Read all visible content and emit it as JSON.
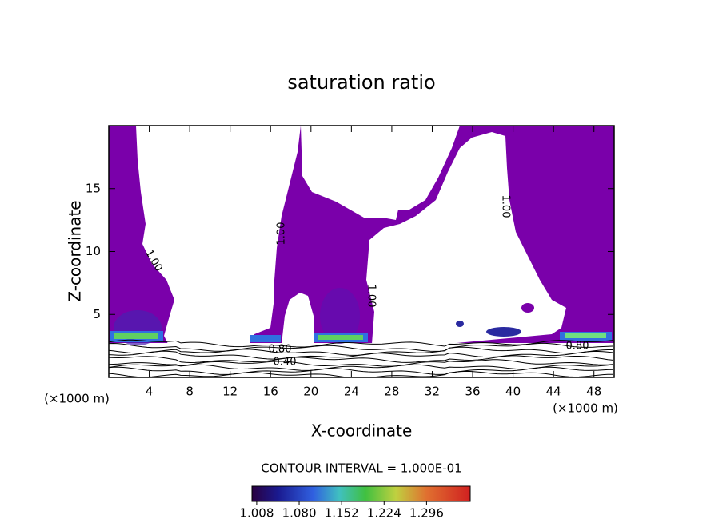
{
  "chart_data": {
    "type": "contour",
    "title": "saturation ratio",
    "xlabel": "X-coordinate",
    "ylabel": "Z-coordinate",
    "x_unit_label": "(×1000 m)",
    "y_unit_label": "(×1000 m)",
    "xlim": [
      0,
      50
    ],
    "xticks": [
      4,
      8,
      12,
      16,
      20,
      24,
      28,
      32,
      36,
      40,
      44,
      48
    ],
    "ylim": [
      0,
      20
    ],
    "yticks": [
      5,
      10,
      15
    ],
    "fill_color": "#7a00aa",
    "contour_labels": [
      "1.00",
      "1.00",
      "1.00",
      "1.00",
      "0.80",
      "0.80",
      "0.40"
    ],
    "contour_interval_label": "CONTOUR INTERVAL = 1.000E-01",
    "colorbar": {
      "lim": [
        1.0,
        1.37
      ],
      "ticks": [
        1.008,
        {
          "value": 1.08,
          "label": "1.080"
        },
        1.152,
        1.224,
        1.296
      ]
    }
  }
}
